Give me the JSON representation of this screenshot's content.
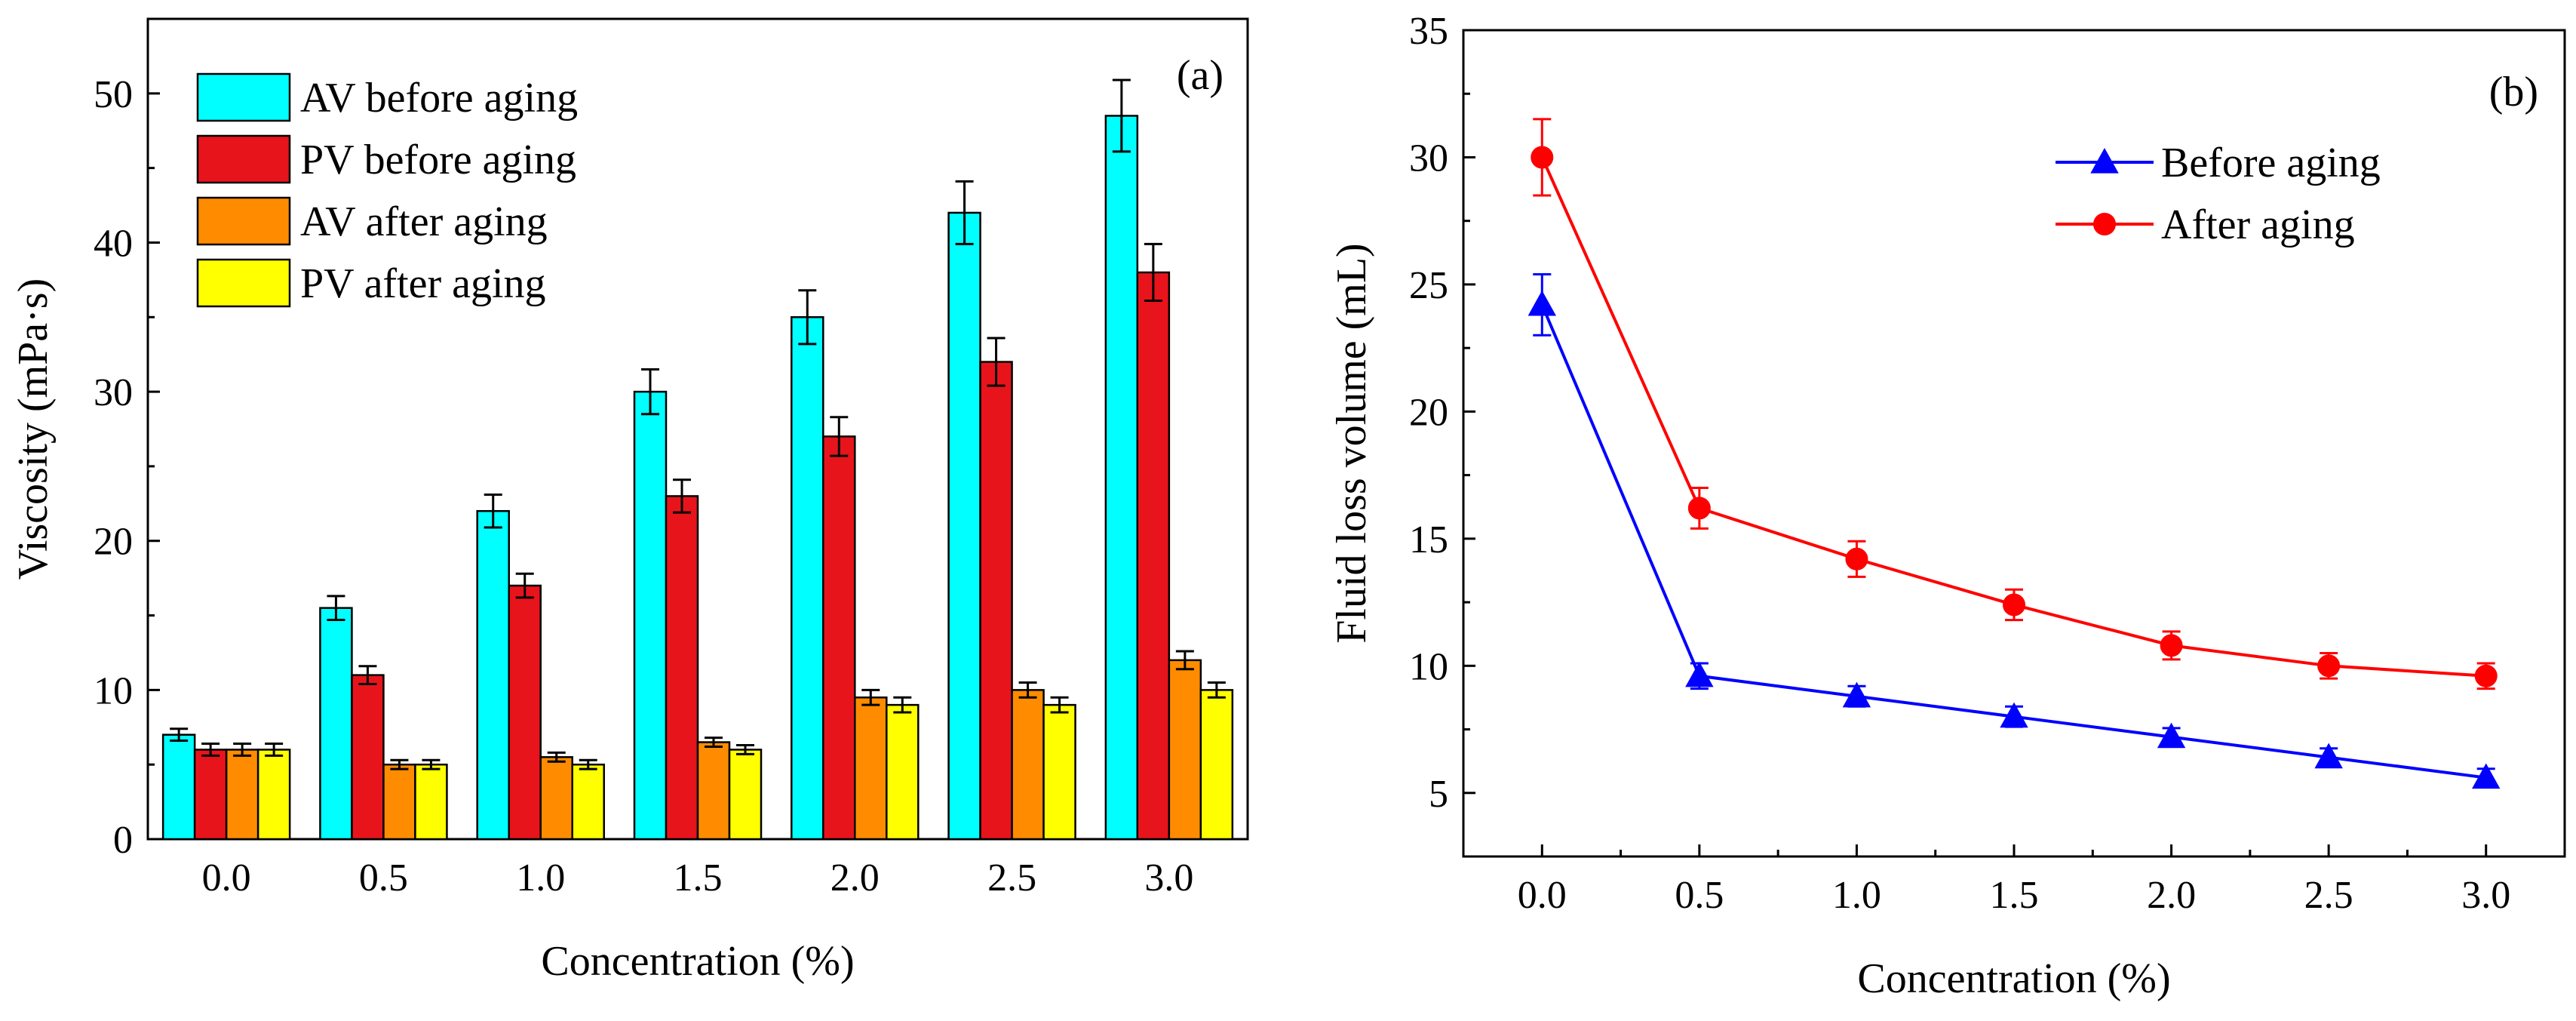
{
  "chart_data": [
    {
      "type": "bar",
      "panel_label": "(a)",
      "xlabel": "Concentration (%)",
      "ylabel": "Viscosity (mPa·s)",
      "categories": [
        "0.0",
        "0.5",
        "1.0",
        "1.5",
        "2.0",
        "2.5",
        "3.0"
      ],
      "ylim": [
        0,
        55
      ],
      "yticks": [
        0,
        10,
        20,
        30,
        40,
        50
      ],
      "grid": false,
      "legend_position": "top-left",
      "series": [
        {
          "name": "AV before aging",
          "color": "#00FFFF",
          "values": [
            7,
            15.5,
            22,
            30,
            35,
            42,
            48.5
          ],
          "errors": [
            0.4,
            0.8,
            1.1,
            1.5,
            1.8,
            2.1,
            2.4
          ]
        },
        {
          "name": "PV before aging",
          "color": "#E8141C",
          "values": [
            6,
            11,
            17,
            23,
            27,
            32,
            38
          ],
          "errors": [
            0.4,
            0.6,
            0.8,
            1.1,
            1.3,
            1.6,
            1.9
          ]
        },
        {
          "name": "AV after aging",
          "color": "#FF8C00",
          "values": [
            6,
            5,
            5.5,
            6.5,
            9.5,
            10,
            12
          ],
          "errors": [
            0.4,
            0.3,
            0.3,
            0.3,
            0.5,
            0.5,
            0.6
          ]
        },
        {
          "name": "PV after aging",
          "color": "#FFFF00",
          "values": [
            6,
            5,
            5,
            6,
            9,
            9,
            10
          ],
          "errors": [
            0.4,
            0.3,
            0.3,
            0.3,
            0.5,
            0.5,
            0.5
          ]
        }
      ]
    },
    {
      "type": "line",
      "panel_label": "(b)",
      "xlabel": "Concentration (%)",
      "ylabel": "Fluid loss volume (mL)",
      "x": [
        0.0,
        0.5,
        1.0,
        1.5,
        2.0,
        2.5,
        3.0
      ],
      "xtick_labels": [
        "0.0",
        "0.5",
        "1.0",
        "1.5",
        "2.0",
        "2.5",
        "3.0"
      ],
      "xlim": [
        -0.25,
        3.25
      ],
      "ylim": [
        2.5,
        35
      ],
      "yticks": [
        5,
        10,
        15,
        20,
        25,
        30,
        35
      ],
      "grid": false,
      "legend_position": "top-right",
      "series": [
        {
          "name": "Before aging",
          "color": "#0000FF",
          "marker": "triangle",
          "values": [
            24.2,
            9.6,
            8.8,
            8.0,
            7.2,
            6.4,
            5.6
          ],
          "errors": [
            1.2,
            0.5,
            0.4,
            0.4,
            0.35,
            0.35,
            0.35
          ]
        },
        {
          "name": "After aging",
          "color": "#FF0000",
          "marker": "circle",
          "values": [
            30.0,
            16.2,
            14.2,
            12.4,
            10.8,
            10.0,
            9.6
          ],
          "errors": [
            1.5,
            0.8,
            0.7,
            0.6,
            0.55,
            0.5,
            0.5
          ]
        }
      ]
    }
  ]
}
